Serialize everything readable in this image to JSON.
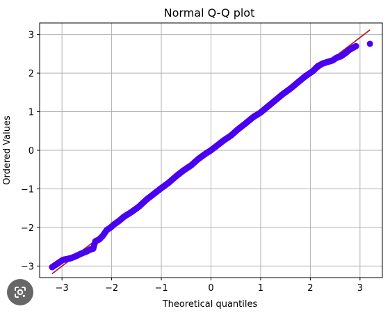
{
  "chart_data": {
    "type": "scatter",
    "title": "Normal Q-Q plot",
    "xlabel": "Theoretical quantiles",
    "ylabel": "Ordered Values",
    "xlim": [
      -3.45,
      3.45
    ],
    "ylim": [
      -3.3,
      3.3
    ],
    "xticks": [
      -3,
      -2,
      -1,
      0,
      1,
      2,
      3
    ],
    "yticks": [
      -3,
      -2,
      -1,
      0,
      1,
      2,
      3
    ],
    "xtick_labels": [
      "−3",
      "−2",
      "−1",
      "0",
      "1",
      "2",
      "3"
    ],
    "ytick_labels": [
      "−3",
      "−2",
      "−1",
      "0",
      "1",
      "2",
      "3"
    ],
    "grid": true,
    "reference_line": {
      "x": [
        -3.2,
        3.2
      ],
      "y": [
        -3.2,
        3.12
      ],
      "color": "#b22222"
    },
    "series": [
      {
        "color": "#4b00f0",
        "points": [
          [
            -3.2,
            -3.03
          ],
          [
            -2.98,
            -2.84
          ],
          [
            -2.83,
            -2.8
          ],
          [
            -2.73,
            -2.75
          ],
          [
            -2.6,
            -2.67
          ],
          [
            -2.5,
            -2.62
          ],
          [
            -2.43,
            -2.57
          ],
          [
            -2.37,
            -2.55
          ],
          [
            -2.33,
            -2.36
          ],
          [
            -2.25,
            -2.31
          ],
          [
            -2.18,
            -2.22
          ],
          [
            -2.1,
            -2.07
          ],
          [
            -2.02,
            -2.0
          ],
          [
            -1.95,
            -1.92
          ],
          [
            -1.85,
            -1.83
          ],
          [
            -1.75,
            -1.72
          ],
          [
            -1.6,
            -1.6
          ],
          [
            -1.45,
            -1.46
          ],
          [
            -1.3,
            -1.28
          ],
          [
            -1.15,
            -1.13
          ],
          [
            -1.0,
            -0.98
          ],
          [
            -0.85,
            -0.84
          ],
          [
            -0.7,
            -0.67
          ],
          [
            -0.55,
            -0.52
          ],
          [
            -0.4,
            -0.39
          ],
          [
            -0.25,
            -0.22
          ],
          [
            -0.1,
            -0.08
          ],
          [
            0.0,
            0.0
          ],
          [
            0.1,
            0.1
          ],
          [
            0.25,
            0.25
          ],
          [
            0.4,
            0.38
          ],
          [
            0.55,
            0.55
          ],
          [
            0.7,
            0.7
          ],
          [
            0.85,
            0.86
          ],
          [
            1.0,
            0.98
          ],
          [
            1.15,
            1.14
          ],
          [
            1.3,
            1.3
          ],
          [
            1.45,
            1.46
          ],
          [
            1.6,
            1.6
          ],
          [
            1.75,
            1.76
          ],
          [
            1.9,
            1.92
          ],
          [
            2.05,
            2.05
          ],
          [
            2.15,
            2.18
          ],
          [
            2.25,
            2.25
          ],
          [
            2.35,
            2.29
          ],
          [
            2.45,
            2.33
          ],
          [
            2.53,
            2.4
          ],
          [
            2.62,
            2.44
          ],
          [
            2.72,
            2.53
          ],
          [
            2.78,
            2.6
          ],
          [
            2.92,
            2.7
          ],
          [
            3.2,
            2.76
          ]
        ]
      }
    ]
  },
  "overlay": {
    "lens_icon": "camera-lens-icon"
  }
}
